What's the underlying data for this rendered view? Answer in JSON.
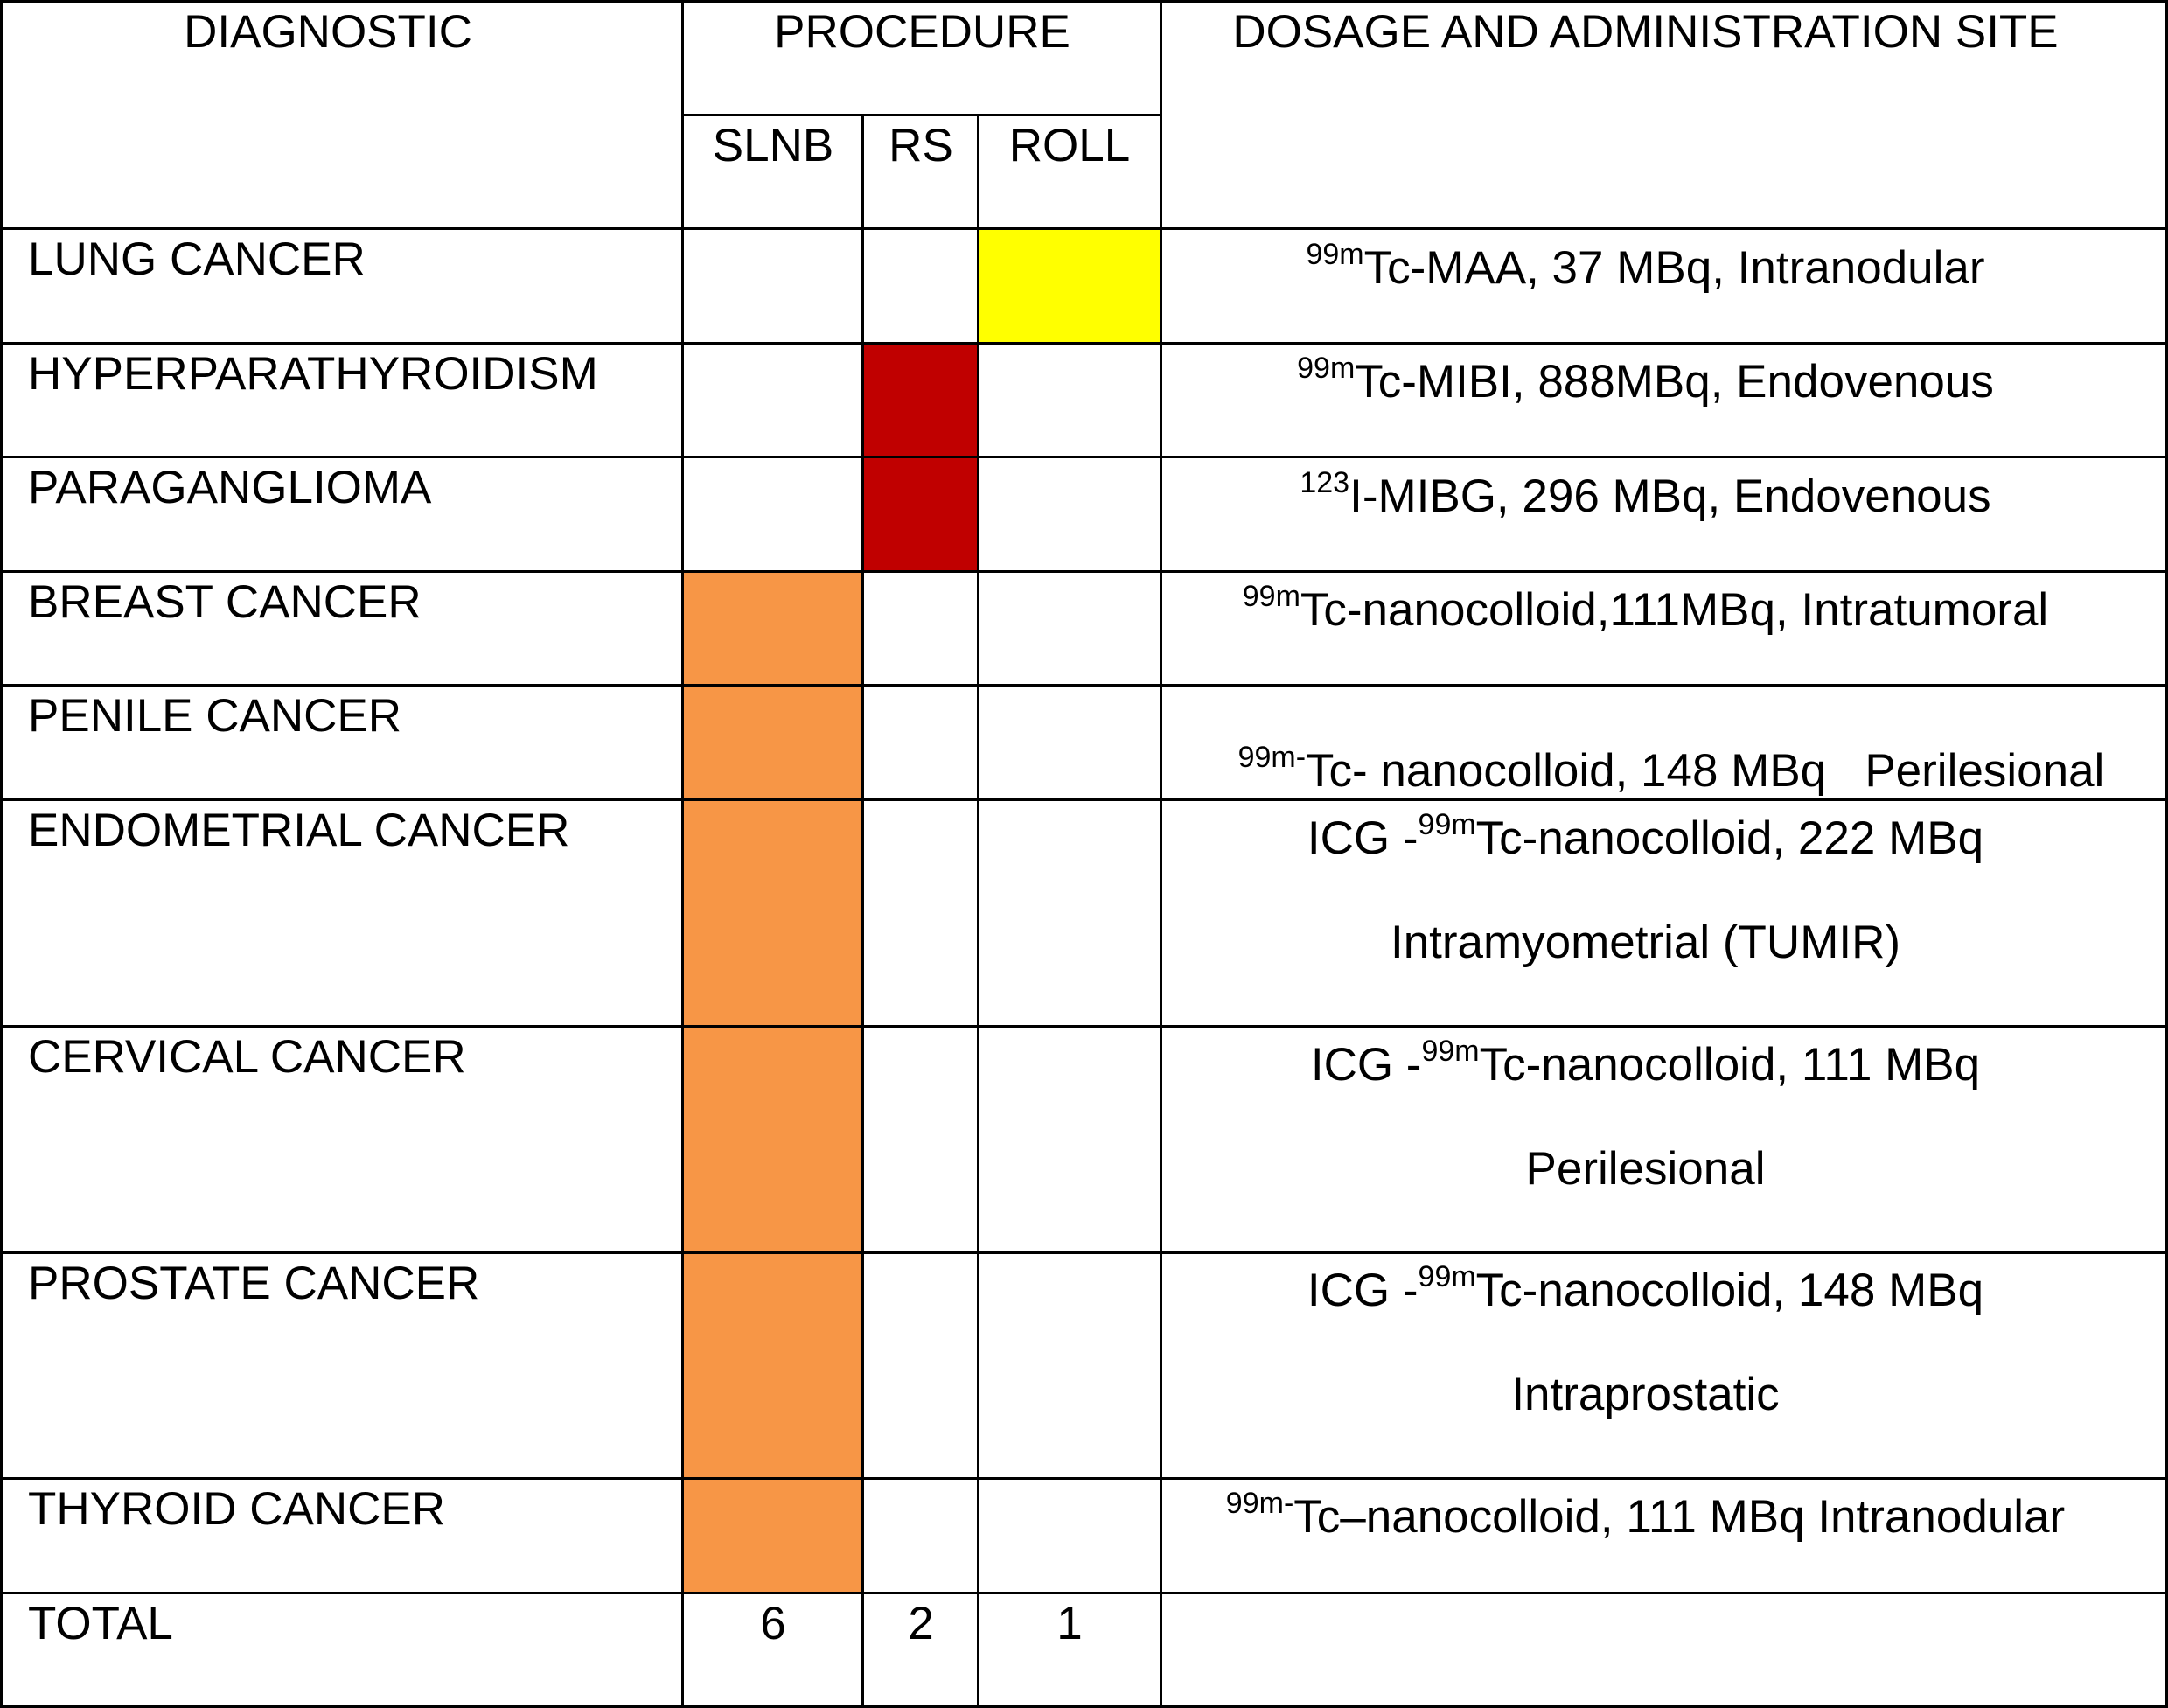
{
  "colors": {
    "slnb": "#f79646",
    "rs": "#c00000",
    "roll": "#ffff00",
    "grid": "#000000"
  },
  "headers": {
    "diagnostic": "DIAGNOSTIC",
    "procedure": "PROCEDURE",
    "dosage": "DOSAGE AND ADMINISTRATION SITE",
    "slnb": "SLNB",
    "rs": "RS",
    "roll": "ROLL"
  },
  "rows": [
    {
      "diagnostic": "LUNG CANCER",
      "procedure": "ROLL",
      "dose_line1": {
        "pre": "",
        "sup": "99m",
        "post": "Tc-MAA, 37 MBq, Intranodular"
      },
      "dose_line2": ""
    },
    {
      "diagnostic": "HYPERPARATHYROIDISM",
      "procedure": "RS",
      "dose_line1": {
        "pre": "",
        "sup": "99m",
        "post": "Tc-MIBI, 888MBq, Endovenous"
      },
      "dose_line2": ""
    },
    {
      "diagnostic": "PARAGANGLIOMA",
      "procedure": "RS",
      "dose_line1": {
        "pre": "",
        "sup": "123",
        "post": "I-MIBG, 296 MBq, Endovenous"
      },
      "dose_line2": ""
    },
    {
      "diagnostic": "BREAST CANCER",
      "procedure": "SLNB",
      "dose_line1": {
        "pre": "",
        "sup": "99m",
        "post": "Tc-nanocolloid,111MBq, Intratumoral"
      },
      "dose_line2": ""
    },
    {
      "diagnostic": "PENILE CANCER",
      "procedure": "SLNB",
      "dose_line1": {
        "pre": "",
        "sup": "99m-",
        "post": "Tc- nanocolloid, 148 MBq   Perilesional"
      },
      "dose_line2": ""
    },
    {
      "diagnostic": "ENDOMETRIAL CANCER",
      "procedure": "SLNB",
      "dose_line1": {
        "pre": "ICG -",
        "sup": "99m",
        "post": "Tc-nanocolloid, 222 MBq"
      },
      "dose_line2": "Intramyometrial (TUMIR)"
    },
    {
      "diagnostic": "CERVICAL CANCER",
      "procedure": "SLNB",
      "dose_line1": {
        "pre": "ICG -",
        "sup": "99m",
        "post": "Tc-nanocolloid, 111 MBq"
      },
      "dose_line2": "Perilesional"
    },
    {
      "diagnostic": "PROSTATE CANCER",
      "procedure": "SLNB",
      "dose_line1": {
        "pre": "ICG -",
        "sup": "99m",
        "post": "Tc-nanocolloid, 148 MBq"
      },
      "dose_line2": "Intraprostatic"
    },
    {
      "diagnostic": "THYROID CANCER",
      "procedure": "SLNB",
      "dose_line1": {
        "pre": "",
        "sup": "99m-",
        "post": "Tc–nanocolloid, 111 MBq Intranodular"
      },
      "dose_line2": ""
    }
  ],
  "total": {
    "label": "TOTAL",
    "slnb": "6",
    "rs": "2",
    "roll": "1"
  }
}
